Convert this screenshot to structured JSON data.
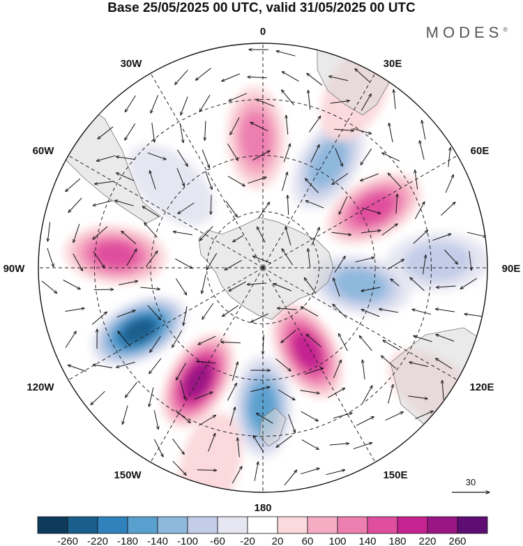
{
  "title": "Base 25/05/2025 00 UTC, valid 31/05/2025 00 UTC",
  "logo": {
    "text": "MODES",
    "mark": "®"
  },
  "map": {
    "projection": "south-polar-stereographic",
    "longitude_labels": [
      "0",
      "30E",
      "60E",
      "90E",
      "120E",
      "150E",
      "180",
      "150W",
      "120W",
      "90W",
      "60W",
      "30W"
    ],
    "reference_vector_label": "30",
    "anomaly_centers": [
      {
        "lon": -3,
        "r": 0.58,
        "value": 150
      },
      {
        "lon": 32,
        "r": 0.55,
        "value": -140
      },
      {
        "lon": 62,
        "r": 0.56,
        "value": 170
      },
      {
        "lon": 88,
        "r": 0.78,
        "value": -100
      },
      {
        "lon": 100,
        "r": 0.44,
        "value": -150
      },
      {
        "lon": 152,
        "r": 0.42,
        "value": 210
      },
      {
        "lon": 180,
        "r": 0.62,
        "value": -170
      },
      {
        "lon": -150,
        "r": 0.58,
        "value": 240
      },
      {
        "lon": -117,
        "r": 0.62,
        "value": -240
      },
      {
        "lon": -85,
        "r": 0.66,
        "value": 160
      },
      {
        "lon": -48,
        "r": 0.55,
        "value": -70
      },
      {
        "lon": 28,
        "r": 0.88,
        "value": 40
      },
      {
        "lon": 125,
        "r": 0.93,
        "value": 60
      },
      {
        "lon": -165,
        "r": 0.9,
        "value": 60
      }
    ]
  },
  "colorbar": {
    "ticks": [
      "-260",
      "-220",
      "-180",
      "-140",
      "-100",
      "-60",
      "-20",
      "20",
      "60",
      "100",
      "140",
      "180",
      "220",
      "260"
    ],
    "colors": [
      "#0e3a5c",
      "#1a5e8c",
      "#2f82bb",
      "#5aa0cf",
      "#8fb8dd",
      "#c3cde8",
      "#e6e6f2",
      "#ffffff",
      "#fbd9dc",
      "#f5adc4",
      "#ed7fb0",
      "#e04f9e",
      "#c42390",
      "#9a1685",
      "#5e0d72"
    ]
  }
}
